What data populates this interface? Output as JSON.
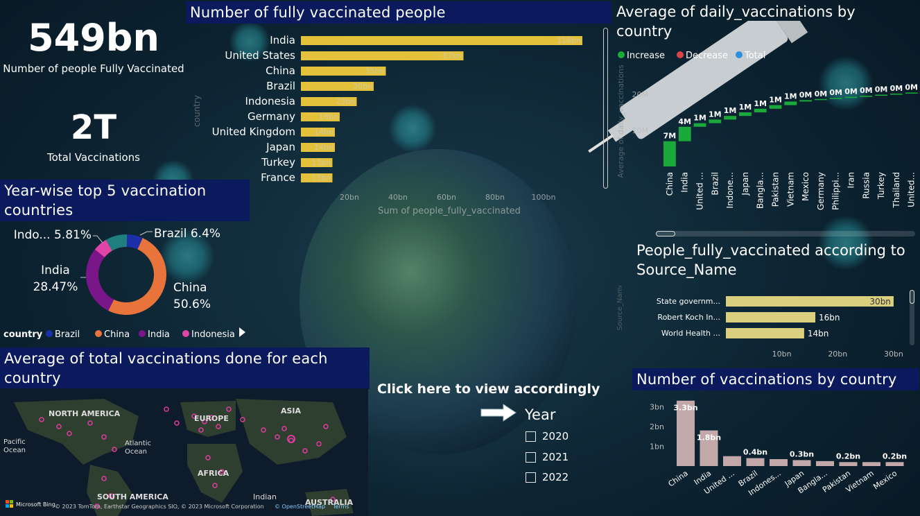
{
  "kpis": {
    "fully_vaccinated_value": "549bn",
    "fully_vaccinated_label": "Number of people Fully Vaccinated",
    "total_vaccinations_value": "2T",
    "total_vaccinations_label": "Total Vaccinations"
  },
  "titles": {
    "fully_vaccinated_chart": "Number of fully vaccinated people",
    "daily_vaccinations_chart": "Average of daily_vaccinations by country",
    "donut_chart": "Year-wise top 5 vaccination countries",
    "map_chart": "Average of total vaccinations done for each country",
    "source_chart": "People_fully_vaccinated according to Source_Name",
    "vaccinations_chart": "Number of vaccinations by country"
  },
  "slicer": {
    "prompt": "Click here to view accordingly",
    "header": "Year",
    "options": [
      "2020",
      "2021",
      "2022"
    ]
  },
  "colors": {
    "bar_yellow": "#e3c13b",
    "bar_khaki": "#d9cf7f",
    "bar_pink": "#c2a8a8",
    "increase": "#1aaa3c",
    "decrease": "#d9434a",
    "total": "#2b8fe0",
    "donut_brazil": "#1b2fa8",
    "donut_china": "#e8743b",
    "donut_india": "#7b168a",
    "donut_indonesia": "#e044a7",
    "donut_other": "#1f7f7f",
    "title_bg": "#0b1a5c",
    "map_dot": "#e43ba0"
  },
  "map": {
    "labels": [
      "NORTH AMERICA",
      "EUROPE",
      "ASIA",
      "Pacific Ocean",
      "Atlantic Ocean",
      "AFRICA",
      "SOUTH AMERICA",
      "Indian",
      "AUSTRALIA"
    ],
    "attribution_logo": "Microsoft Bing",
    "attribution": "© 2023 TomTom, Earthstar Geographics SIO, © 2023 Microsoft Corporation",
    "osm": "© OpenStreetMap",
    "terms": "Terms"
  },
  "chart_data": [
    {
      "type": "bar",
      "orientation": "horizontal",
      "title": "Number of fully vaccinated people",
      "categories": [
        "India",
        "United States",
        "China",
        "Brazil",
        "Indonesia",
        "Germany",
        "United Kingdom",
        "Japan",
        "Turkey",
        "France"
      ],
      "values": [
        116,
        67,
        35,
        30,
        23,
        16,
        14,
        14,
        13,
        13
      ],
      "value_labels": [
        "116bn",
        "67bn",
        "35bn",
        "30bn",
        "23bn",
        "16bn",
        "14bn",
        "14bn",
        "13bn",
        "13bn"
      ],
      "xticks": [
        "20bn",
        "40bn",
        "60bn",
        "80bn",
        "100bn"
      ],
      "xtick_values": [
        20,
        40,
        60,
        80,
        100
      ],
      "xlim": [
        0,
        120
      ],
      "xlabel": "Sum of people_fully_vaccinated",
      "ylabel": "country"
    },
    {
      "type": "bar",
      "subtype": "waterfall",
      "title": "Average of daily_vaccinations by country",
      "legend": [
        "Increase",
        "Decrease",
        "Total"
      ],
      "legend_position": "top-left",
      "categories": [
        "China",
        "India",
        "United ...",
        "Brazil",
        "Indone...",
        "Japan",
        "Bangla...",
        "Pakistan",
        "Vietnam",
        "Mexico",
        "Germany",
        "Philippi...",
        "Iran",
        "Russia",
        "Turkey",
        "Thailand",
        "United..."
      ],
      "values": [
        7,
        4,
        1,
        1,
        1,
        1,
        1,
        1,
        1,
        0.4,
        0.3,
        0.3,
        0.3,
        0.3,
        0.3,
        0.3,
        0.3
      ],
      "value_labels": [
        "7M",
        "4M",
        "1M",
        "1M",
        "1M",
        "1M",
        "1M",
        "1M",
        "1M",
        "0M",
        "0M",
        "0M",
        "0M",
        "0M",
        "0M",
        "0M",
        "0M"
      ],
      "yticks": [
        "10M",
        "20M"
      ],
      "ytick_values": [
        10,
        20
      ],
      "ylim": [
        0,
        25
      ],
      "ylabel": "Average of daily_vaccinations"
    },
    {
      "type": "pie",
      "subtype": "donut",
      "title": "Year-wise top 5 vaccination countries",
      "legend_title": "country",
      "legend": [
        "Brazil",
        "China",
        "India",
        "Indonesia"
      ],
      "legend_position": "bottom",
      "slices": [
        {
          "name": "Brazil",
          "value": 6.4,
          "label": "Brazil 6.4%"
        },
        {
          "name": "China",
          "value": 50.6,
          "label": "China 50.6%"
        },
        {
          "name": "India",
          "value": 28.47,
          "label": "India 28.47%"
        },
        {
          "name": "Indonesia",
          "value": 5.81,
          "label": "Indo... 5.81%"
        },
        {
          "name": "Other",
          "value": 8.72,
          "label": ""
        }
      ]
    },
    {
      "type": "bar",
      "orientation": "horizontal",
      "title": "People_fully_vaccinated according to Source_Name",
      "categories": [
        "State governm...",
        "Robert Koch In...",
        "World Health ..."
      ],
      "values": [
        30,
        16,
        14
      ],
      "value_labels": [
        "30bn",
        "16bn",
        "14bn"
      ],
      "xticks": [
        "10bn",
        "20bn",
        "30bn"
      ],
      "xtick_values": [
        10,
        20,
        30
      ],
      "xlim": [
        0,
        31
      ],
      "ylabel": "Source_Name"
    },
    {
      "type": "bar",
      "title": "Number of vaccinations by country",
      "categories": [
        "China",
        "India",
        "United ...",
        "Brazil",
        "Indones...",
        "Japan",
        "Bangla...",
        "Pakistan",
        "Vietnam",
        "Mexico"
      ],
      "values": [
        3.3,
        1.8,
        0.5,
        0.4,
        0.35,
        0.3,
        0.25,
        0.2,
        0.2,
        0.2
      ],
      "value_labels": [
        "3.3bn",
        "1.8bn",
        "",
        "0.4bn",
        "",
        "0.3bn",
        "",
        "0.2bn",
        "",
        "0.2bn"
      ],
      "yticks": [
        "1bn",
        "2bn",
        "3bn"
      ],
      "ytick_values": [
        1,
        2,
        3
      ],
      "ylim": [
        0,
        3.5
      ]
    }
  ]
}
